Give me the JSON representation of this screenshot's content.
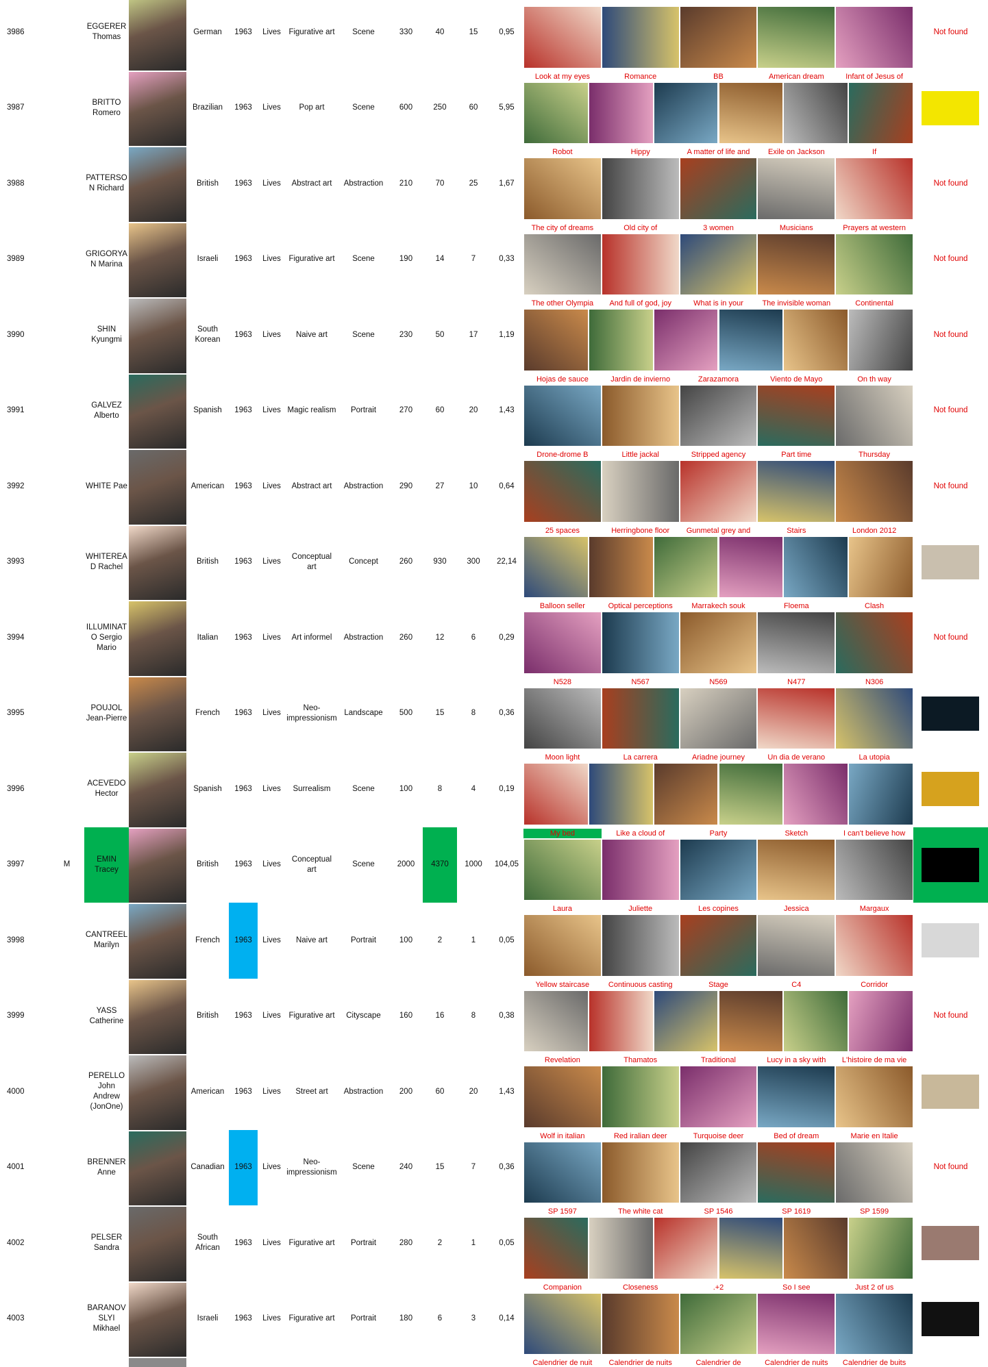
{
  "table": {
    "rows": [
      {
        "id": "3986",
        "name": "EGGERER Thomas",
        "nationality": "German",
        "year": "1963",
        "status": "Lives",
        "movement": "Figurative art",
        "genre": "Scene",
        "figures": [
          "330",
          "40",
          "15",
          "0,95"
        ],
        "captions": [],
        "signature": "Not found"
      },
      {
        "id": "3987",
        "name": "BRITTO Romero",
        "nationality": "Brazilian",
        "year": "1963",
        "status": "Lives",
        "movement": "Pop art",
        "genre": "Scene",
        "figures": [
          "600",
          "250",
          "60",
          "5,95"
        ],
        "captions": [
          "Look at my eyes",
          "Romance",
          "BB",
          "American dream",
          "Infant of Jesus of"
        ]
      },
      {
        "id": "3988",
        "name": "PATTERSON Richard",
        "nationality": "British",
        "year": "1963",
        "status": "Lives",
        "movement": "Abstract art",
        "genre": "Abstraction",
        "figures": [
          "210",
          "70",
          "25",
          "1,67"
        ],
        "captions": [
          "Robot",
          "Hippy",
          "A matter of life and",
          "Exile on Jackson",
          "If"
        ],
        "signature": "Not found"
      },
      {
        "id": "3989",
        "name": "GRIGORYAN Marina",
        "nationality": "Israeli",
        "year": "1963",
        "status": "Lives",
        "movement": "Figurative art",
        "genre": "Scene",
        "figures": [
          "190",
          "14",
          "7",
          "0,33"
        ],
        "captions": [
          "The city of dreams",
          "Old city of",
          "3 women",
          "Musicians",
          "Prayers at western"
        ],
        "signature": "Not found"
      },
      {
        "id": "3990",
        "name": "SHIN Kyungmi",
        "nationality": "South Korean",
        "year": "1963",
        "status": "Lives",
        "movement": "Naive art",
        "genre": "Scene",
        "figures": [
          "230",
          "50",
          "17",
          "1,19"
        ],
        "captions": [
          "The other Olympia",
          "And full of god, joy",
          "What is in your",
          "The invisible woman",
          "Continental"
        ],
        "signature": "Not found"
      },
      {
        "id": "3991",
        "name": "GALVEZ Alberto",
        "nationality": "Spanish",
        "year": "1963",
        "status": "Lives",
        "movement": "Magic realism",
        "genre": "Portrait",
        "figures": [
          "270",
          "60",
          "20",
          "1,43"
        ],
        "captions": [
          "Hojas de sauce",
          "Jardin de invierno",
          "Zarazamora",
          "Viento de Mayo",
          "On th way"
        ],
        "signature": "Not found"
      },
      {
        "id": "3992",
        "name": "WHITE Pae",
        "nationality": "American",
        "year": "1963",
        "status": "Lives",
        "movement": "Abstract art",
        "genre": "Abstraction",
        "figures": [
          "290",
          "27",
          "10",
          "0,64"
        ],
        "captions": [
          "Drone-drome B",
          "Little jackal",
          "Stripped agency",
          "Part time",
          "Thursday"
        ],
        "signature": "Not found"
      },
      {
        "id": "3993",
        "name": "WHITEREAD Rachel",
        "nationality": "British",
        "year": "1963",
        "status": "Lives",
        "movement": "Conceptual art",
        "genre": "Concept",
        "figures": [
          "260",
          "930",
          "300",
          "22,14"
        ],
        "captions": [
          "25 spaces",
          "Herringbone floor",
          "Gunmetal grey and",
          "Stairs",
          "London 2012"
        ]
      },
      {
        "id": "3994",
        "name": "ILLUMINATO Sergio Mario",
        "nationality": "Italian",
        "year": "1963",
        "status": "Lives",
        "movement": "Art informel",
        "genre": "Abstraction",
        "figures": [
          "260",
          "12",
          "6",
          "0,29"
        ],
        "captions": [
          "Balloon seller",
          "Optical perceptions",
          "Marrakech souk",
          "Floema",
          "Clash"
        ],
        "signature": "Not found"
      },
      {
        "id": "3995",
        "name": "POUJOL Jean-Pierre",
        "nationality": "French",
        "year": "1963",
        "status": "Lives",
        "movement": "Neo-impressionism",
        "genre": "Landscape",
        "figures": [
          "500",
          "15",
          "8",
          "0,36"
        ],
        "captions": [
          "N528",
          "N567",
          "N569",
          "N477",
          "N306"
        ]
      },
      {
        "id": "3996",
        "name": "ACEVEDO Hector",
        "nationality": "Spanish",
        "year": "1963",
        "status": "Lives",
        "movement": "Surrealism",
        "genre": "Scene",
        "figures": [
          "100",
          "8",
          "4",
          "0,19"
        ],
        "captions": [
          "Moon light",
          "La carrera",
          "Ariadne journey",
          "Un dia de verano",
          "La utopia"
        ]
      },
      {
        "id": "3997",
        "flag": "M",
        "name": "EMIN Tracey",
        "nationality": "British",
        "year": "1963",
        "status": "Lives",
        "movement": "Conceptual art",
        "genre": "Scene",
        "figures": [
          "2000",
          "4370",
          "1000",
          "104,05"
        ],
        "captions": [
          "My bed",
          "Like a cloud of",
          "Party",
          "Sketch",
          "I can't believe how"
        ],
        "fills": {
          "name": "#00b050",
          "figure1": "#00b050",
          "signature": "#00b050",
          "caption0": "#00b050"
        }
      },
      {
        "id": "3998",
        "name": "CANTREEL Marilyn",
        "nationality": "French",
        "year": "1963",
        "status": "Lives",
        "movement": "Naive art",
        "genre": "Portrait",
        "figures": [
          "100",
          "2",
          "1",
          "0,05"
        ],
        "captions": [
          "Laura",
          "Juliette",
          "Les copines",
          "Jessica",
          "Margaux"
        ],
        "fills": {
          "year": "#00b0f0"
        }
      },
      {
        "id": "3999",
        "name": "YASS Catherine",
        "nationality": "British",
        "year": "1963",
        "status": "Lives",
        "movement": "Figurative art",
        "genre": "Cityscape",
        "figures": [
          "160",
          "16",
          "8",
          "0,38"
        ],
        "captions": [
          "Yellow staircase",
          "Continuous casting",
          "Stage",
          "C4",
          "Corridor"
        ],
        "signature": "Not found"
      },
      {
        "id": "4000",
        "name": "PERELLO John Andrew (JonOne)",
        "nationality": "American",
        "year": "1963",
        "status": "Lives",
        "movement": "Street art",
        "genre": "Abstraction",
        "figures": [
          "200",
          "60",
          "20",
          "1,43"
        ],
        "captions": [
          "Revelation",
          "Thamatos",
          "Traditional",
          "Lucy in a sky with",
          "L'histoire de ma vie"
        ]
      },
      {
        "id": "4001",
        "name": "BRENNER Anne",
        "nationality": "Canadian",
        "year": "1963",
        "status": "Lives",
        "movement": "Neo-impressionism",
        "genre": "Scene",
        "figures": [
          "240",
          "15",
          "7",
          "0,36"
        ],
        "captions": [
          "Wolf in italian",
          "Red iralian deer",
          "Turquoise deer",
          "Bed of dream",
          "Marie en Italie"
        ],
        "signature": "Not found",
        "fills": {
          "year": "#00b0f0"
        }
      },
      {
        "id": "4002",
        "name": "PELSER Sandra",
        "nationality": "South African",
        "year": "1963",
        "status": "Lives",
        "movement": "Figurative art",
        "genre": "Portrait",
        "figures": [
          "280",
          "2",
          "1",
          "0,05"
        ],
        "captions": [
          "SP 1597",
          "The white cat",
          "SP 1546",
          "SP 1619",
          "SP 1599"
        ]
      },
      {
        "id": "4003",
        "name": "BARANOVSLYI Mikhael",
        "nationality": "Israeli",
        "year": "1963",
        "status": "Lives",
        "movement": "Figurative art",
        "genre": "Portrait",
        "figures": [
          "180",
          "6",
          "3",
          "0,14"
        ],
        "captions": [
          "Companion",
          "Closeness",
          ".+2",
          "So I see",
          "Just 2 of us"
        ]
      }
    ],
    "trailing_captions": [
      "Calendrier de nuit",
      "Calendrier de nuits",
      "Calendrier de",
      "Calendrier de nuits",
      "Calendrier de buits"
    ]
  }
}
